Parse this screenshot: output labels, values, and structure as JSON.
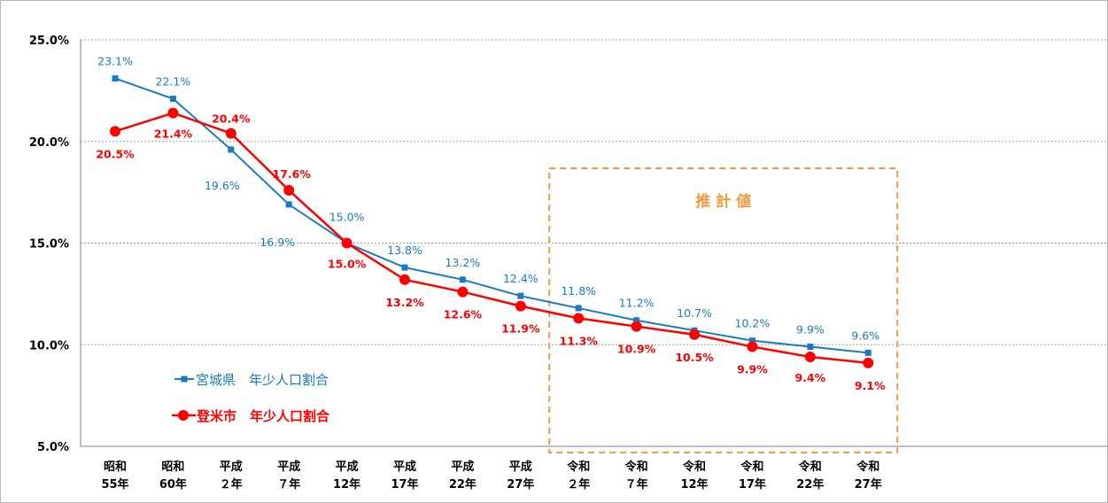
{
  "chart_data": {
    "type": "line",
    "title": "",
    "xlabel": "",
    "ylabel": "",
    "ylim": [
      5.0,
      25.0
    ],
    "yticks": [
      5.0,
      10.0,
      15.0,
      20.0,
      25.0
    ],
    "ytick_labels": [
      "5.0%",
      "10.0%",
      "15.0%",
      "20.0%",
      "25.0%"
    ],
    "grid": "horizontal-dashed",
    "categories": [
      [
        "昭和",
        "55年"
      ],
      [
        "昭和",
        "60年"
      ],
      [
        "平成",
        "２年"
      ],
      [
        "平成",
        "７年"
      ],
      [
        "平成",
        "12年"
      ],
      [
        "平成",
        "17年"
      ],
      [
        "平成",
        "22年"
      ],
      [
        "平成",
        "27年"
      ],
      [
        "令和",
        "２年"
      ],
      [
        "令和",
        "７年"
      ],
      [
        "令和",
        "12年"
      ],
      [
        "令和",
        "17年"
      ],
      [
        "令和",
        "22年"
      ],
      [
        "令和",
        "27年"
      ]
    ],
    "legend_position": "bottom-left",
    "series": [
      {
        "name": "宮城県　年少人口割合",
        "color": "#1a7bc4",
        "marker": "square",
        "values": [
          23.1,
          22.1,
          19.6,
          16.9,
          15.0,
          13.8,
          13.2,
          12.4,
          11.8,
          11.2,
          10.7,
          10.2,
          9.9,
          9.6
        ],
        "labels": [
          "23.1%",
          "22.1%",
          "19.6%",
          "16.9%",
          "15.0%",
          "13.8%",
          "13.2%",
          "12.4%",
          "11.8%",
          "11.2%",
          "10.7%",
          "10.2%",
          "9.9%",
          "9.6%"
        ]
      },
      {
        "name": "登米市　年少人口割合",
        "color": "#ff0000",
        "marker": "circle",
        "values": [
          20.5,
          21.4,
          20.4,
          17.6,
          15.0,
          13.2,
          12.6,
          11.9,
          11.3,
          10.9,
          10.5,
          9.9,
          9.4,
          9.1
        ],
        "labels": [
          "20.5%",
          "21.4%",
          "20.4%",
          "17.6%",
          "15.0%",
          "13.2%",
          "12.6%",
          "11.9%",
          "11.3%",
          "10.9%",
          "10.5%",
          "9.9%",
          "9.4%",
          "9.1%"
        ]
      }
    ],
    "annotation": {
      "text": "推計値",
      "color": "#f39a3c",
      "from_category_index": 8,
      "to_category_index": 13
    }
  }
}
